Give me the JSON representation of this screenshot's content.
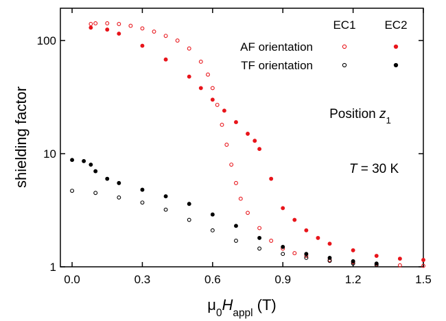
{
  "chart_data": {
    "type": "scatter",
    "y_label": "shielding factor",
    "x_label": [
      {
        "text": "μ"
      },
      {
        "text": "0",
        "sub": true
      },
      {
        "text": "H",
        "italic": true
      },
      {
        "text": "appl",
        "sub": true
      },
      {
        "text": " (T)"
      }
    ],
    "xlim": [
      -0.05,
      1.5
    ],
    "xticks": [
      {
        "value": 0,
        "label": "0.0"
      },
      0.3,
      0.6,
      0.9,
      1.2,
      1.5
    ],
    "ylim": [
      1,
      193
    ],
    "yticks": [
      1,
      10,
      100
    ],
    "log_y": true,
    "legend": {
      "columns": [
        "EC1",
        "EC2"
      ],
      "rows": [
        "AF orientation",
        "TF orientation"
      ]
    },
    "annotations": [
      [
        {
          "text": "Position "
        },
        {
          "text": "z",
          "italic": true
        },
        {
          "text": "1",
          "sub": true
        }
      ],
      [
        {
          "text": "T",
          "italic": true
        },
        {
          "text": " = 30 K"
        }
      ]
    ],
    "series": [
      {
        "color": "#e8151b",
        "marker": "open",
        "x": [
          0.08,
          0.1,
          0.15,
          0.2,
          0.25,
          0.3,
          0.35,
          0.4,
          0.45,
          0.5,
          0.55,
          0.58,
          0.6,
          0.62,
          0.64,
          0.66,
          0.68,
          0.7,
          0.72,
          0.75,
          0.8,
          0.85,
          0.9,
          0.95,
          1.0,
          1.1,
          1.2,
          1.3,
          1.4,
          1.5
        ],
        "values": [
          140,
          142,
          142,
          140,
          135,
          128,
          120,
          110,
          100,
          85,
          65,
          50,
          38,
          27,
          18,
          12,
          8,
          5.5,
          4,
          3,
          2.2,
          1.7,
          1.45,
          1.32,
          1.25,
          1.15,
          1.1,
          1.06,
          1.03,
          1.02
        ]
      },
      {
        "color": "#e8151b",
        "marker": "filled",
        "x": [
          0.08,
          0.15,
          0.2,
          0.3,
          0.4,
          0.5,
          0.55,
          0.6,
          0.65,
          0.7,
          0.75,
          0.78,
          0.8,
          0.85,
          0.9,
          0.95,
          1.0,
          1.05,
          1.1,
          1.2,
          1.3,
          1.4,
          1.5
        ],
        "values": [
          130,
          125,
          115,
          90,
          68,
          48,
          38,
          30,
          24,
          19,
          15,
          13,
          11,
          6,
          3.3,
          2.6,
          2.1,
          1.8,
          1.6,
          1.4,
          1.25,
          1.18,
          1.15
        ]
      },
      {
        "color": "#000000",
        "marker": "open",
        "x": [
          0,
          0.1,
          0.2,
          0.3,
          0.4,
          0.5,
          0.6,
          0.7,
          0.8,
          0.9,
          1.0,
          1.1,
          1.2,
          1.3
        ],
        "values": [
          4.7,
          4.5,
          4.1,
          3.7,
          3.2,
          2.6,
          2.1,
          1.7,
          1.45,
          1.3,
          1.2,
          1.13,
          1.07,
          1.04
        ]
      },
      {
        "color": "#000000",
        "marker": "filled",
        "x": [
          0,
          0.05,
          0.08,
          0.1,
          0.15,
          0.2,
          0.3,
          0.4,
          0.5,
          0.6,
          0.7,
          0.8,
          0.9,
          1.0,
          1.1,
          1.2,
          1.3
        ],
        "values": [
          8.8,
          8.6,
          8,
          7,
          6,
          5.5,
          4.8,
          4.2,
          3.6,
          2.9,
          2.3,
          1.8,
          1.5,
          1.3,
          1.2,
          1.12,
          1.07
        ]
      }
    ]
  }
}
